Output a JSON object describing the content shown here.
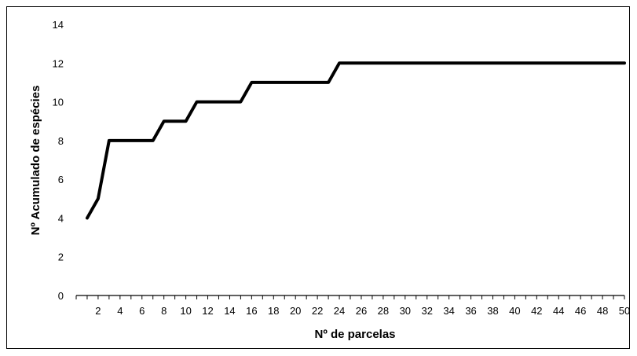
{
  "chart_data": {
    "type": "line",
    "title": "",
    "xlabel": "Nº de parcelas",
    "ylabel": "Nº Acumulado de espécies",
    "xlim": [
      0,
      50
    ],
    "ylim": [
      0,
      14
    ],
    "yticks": [
      0,
      2,
      4,
      6,
      8,
      10,
      12,
      14
    ],
    "xticks": [
      2,
      4,
      6,
      8,
      10,
      12,
      14,
      16,
      18,
      20,
      22,
      24,
      26,
      28,
      30,
      32,
      34,
      36,
      38,
      40,
      42,
      44,
      46,
      48,
      50
    ],
    "grid": false,
    "legend": "none",
    "line_color": "#000000",
    "series": [
      {
        "x": [
          1,
          2,
          3,
          4,
          5,
          6,
          7,
          8,
          9,
          10,
          11,
          12,
          13,
          14,
          15,
          16,
          17,
          18,
          19,
          20,
          21,
          22,
          23,
          24,
          25,
          26,
          27,
          28,
          29,
          30,
          31,
          32,
          33,
          34,
          35,
          36,
          37,
          38,
          39,
          40,
          41,
          42,
          43,
          44,
          45,
          46,
          47,
          48,
          49,
          50
        ],
        "values": [
          4,
          5,
          8,
          8,
          8,
          8,
          8,
          9,
          9,
          9,
          10,
          10,
          10,
          10,
          10,
          11,
          11,
          11,
          11,
          11,
          11,
          11,
          11,
          12,
          12,
          12,
          12,
          12,
          12,
          12,
          12,
          12,
          12,
          12,
          12,
          12,
          12,
          12,
          12,
          12,
          12,
          12,
          12,
          12,
          12,
          12,
          12,
          12,
          12,
          12
        ]
      }
    ]
  }
}
